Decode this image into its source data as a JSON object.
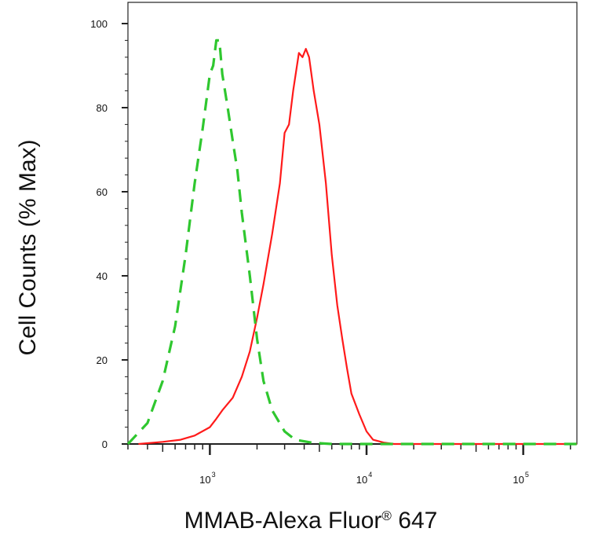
{
  "chart_data": {
    "type": "line",
    "xlabel_main": "MMAB-Alexa Fluor",
    "xlabel_sup": "®",
    "xlabel_tail": " 647",
    "ylabel": "Cell Counts (% Max)",
    "x_scale": "log",
    "xlim": [
      300,
      220000
    ],
    "ylim": [
      0,
      100
    ],
    "y_ticks": [
      0,
      20,
      40,
      60,
      80,
      100
    ],
    "x_ticks": [
      {
        "value": 1000,
        "base": "10",
        "exp": "3"
      },
      {
        "value": 10000,
        "base": "10",
        "exp": "4"
      },
      {
        "value": 100000,
        "base": "10",
        "exp": "5"
      }
    ],
    "grid": false,
    "legend": "none",
    "series": [
      {
        "color": "#ff1a1a",
        "style": "solid",
        "x": [
          350,
          500,
          650,
          800,
          1000,
          1100,
          1200,
          1400,
          1600,
          1800,
          2000,
          2200,
          2500,
          2800,
          3000,
          3200,
          3400,
          3700,
          3900,
          4100,
          4300,
          4600,
          5000,
          5500,
          6000,
          6500,
          7000,
          7500,
          8000,
          9000,
          10000,
          11000,
          13000,
          15000,
          20000,
          50000,
          100000,
          220000
        ],
        "y": [
          0,
          0.5,
          1,
          2,
          4,
          6,
          8,
          11,
          16,
          22,
          30,
          38,
          50,
          62,
          74,
          76,
          84,
          93,
          92,
          94,
          92,
          84,
          76,
          62,
          45,
          33,
          25,
          18,
          12,
          7,
          3,
          1,
          0.3,
          0,
          0,
          0,
          0,
          0
        ]
      },
      {
        "color": "#2fc72f",
        "style": "dashed",
        "x": [
          300,
          400,
          500,
          600,
          700,
          800,
          900,
          1000,
          1050,
          1100,
          1150,
          1200,
          1300,
          1400,
          1500,
          1600,
          1800,
          2000,
          2200,
          2500,
          3000,
          3500,
          4500,
          6000,
          10000,
          220000
        ],
        "y": [
          0,
          5,
          15,
          28,
          45,
          62,
          75,
          88,
          90,
          96,
          96,
          88,
          80,
          72,
          65,
          55,
          40,
          25,
          15,
          8,
          3,
          1,
          0.3,
          0,
          0,
          0
        ]
      }
    ]
  }
}
